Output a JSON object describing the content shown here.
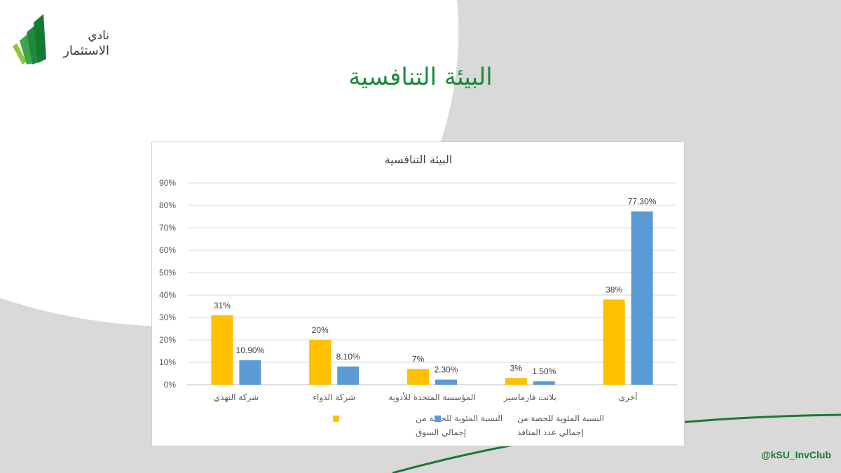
{
  "slide": {
    "title": "البيئة التنافسية",
    "logo_line1": "نادي",
    "logo_line2": "الاستثمار",
    "handle": "@kSU_InvClub"
  },
  "colors": {
    "green": "#1a8c3a",
    "yellow": "#ffc000",
    "blue": "#5b9bd5"
  },
  "chart_data": {
    "type": "bar",
    "title": "البيئة التنافسية",
    "categories": [
      "شركة النهدي",
      "شركة الدواء",
      "المؤسسة المتحدة للأدوية",
      "بلانت فارماسيز",
      "أخرى"
    ],
    "series": [
      {
        "name": "النسبة المئوية للحصة من إجمالي السوق",
        "name_lines": [
          "النسبة المئوية للحصة من",
          "إجمالي السوق"
        ],
        "color": "#ffc000",
        "values": [
          31,
          20,
          7,
          3,
          38
        ],
        "labels": [
          "31%",
          "20%",
          "7%",
          "3%",
          "38%"
        ]
      },
      {
        "name": "النسبة المئوية للحصة من إجمالي عدد المنافذ",
        "name_lines": [
          "النسبة المئوية للحصة من",
          "إجمالي عدد المنافذ"
        ],
        "color": "#5b9bd5",
        "values": [
          10.9,
          8.1,
          2.3,
          1.5,
          77.3
        ],
        "labels": [
          "10.90%",
          "8.10%",
          "2.30%",
          "1.50%",
          "77.30%"
        ]
      }
    ],
    "yticks": [
      "0%",
      "10%",
      "20%",
      "30%",
      "40%",
      "50%",
      "60%",
      "70%",
      "80%",
      "90%"
    ],
    "ylim": [
      0,
      90
    ],
    "grid": true,
    "legend": "bottom"
  }
}
